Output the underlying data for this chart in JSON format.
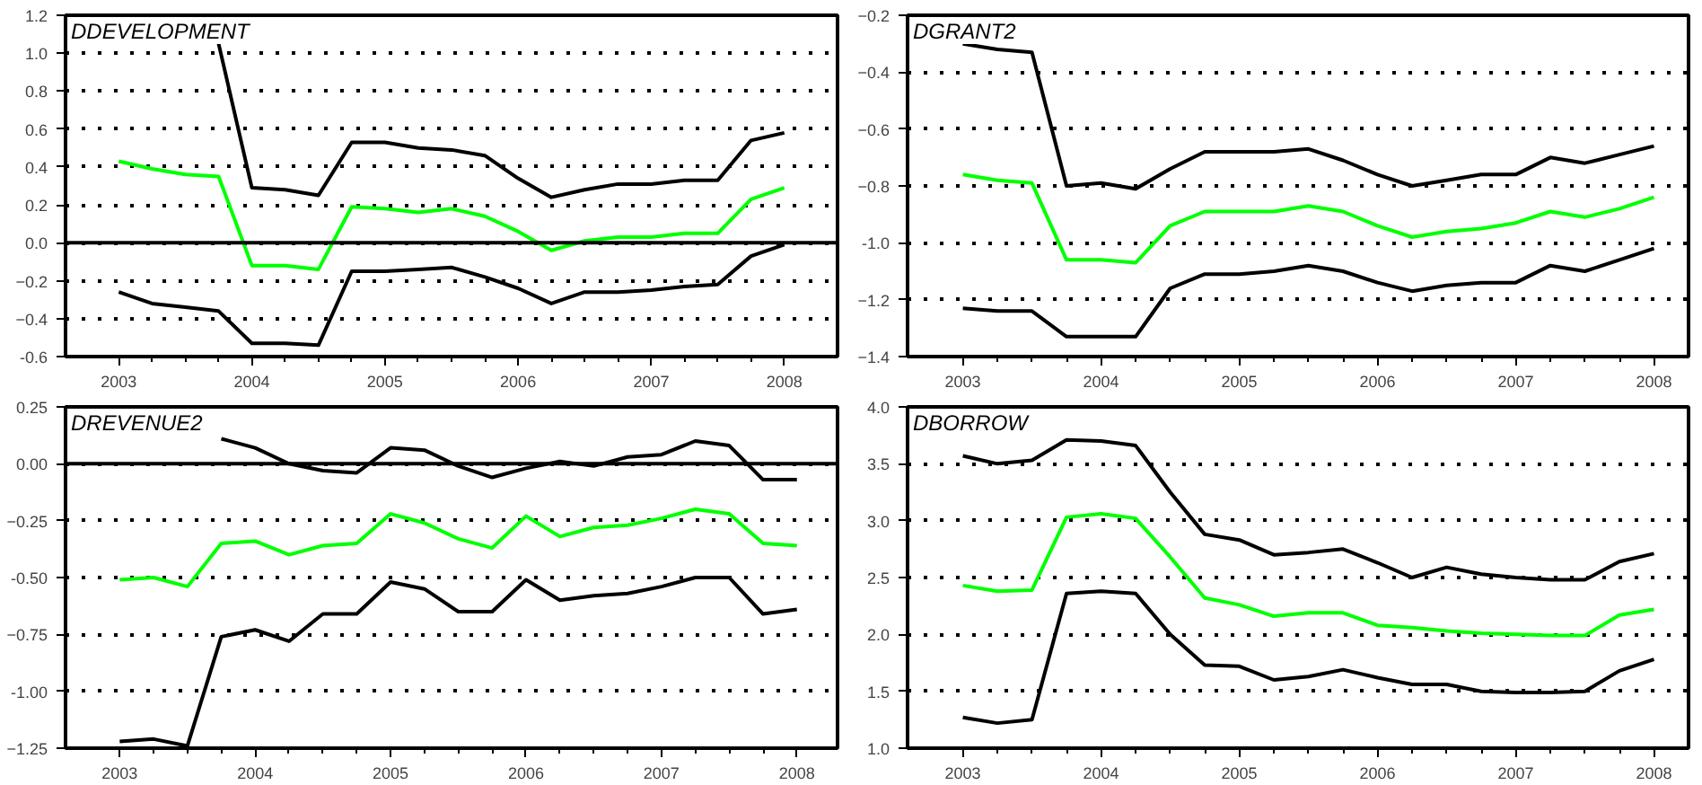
{
  "chart_data": [
    {
      "type": "line",
      "title": "DDEVELOPMENT",
      "grid": "y",
      "line_style": "solid",
      "x": [
        2003,
        2003.25,
        2003.5,
        2003.75,
        2004,
        2004.25,
        2004.5,
        2004.75,
        2005,
        2005.25,
        2005.5,
        2005.75,
        2006,
        2006.25,
        2006.5,
        2006.75,
        2007,
        2007.25,
        2007.5,
        2007.75,
        2008
      ],
      "xlim": [
        2002.6,
        2008.4
      ],
      "xticks": [
        2003,
        2004,
        2005,
        2006,
        2007,
        2008
      ],
      "ylim": [
        -0.6,
        1.2
      ],
      "yticks": [
        {
          "value": -0.6,
          "label": "-0.6"
        },
        -0.4,
        -0.2,
        {
          "value": 0,
          "label": "0.0"
        },
        0.2,
        0.4,
        0.6,
        0.8,
        {
          "value": 1.0,
          "label": "1.0"
        },
        1.2
      ],
      "ref_lines": [
        {
          "axis": "y",
          "value": 0,
          "color": "#000000"
        }
      ],
      "series": [
        {
          "color": "#000000",
          "values": [
            null,
            null,
            null,
            1.05,
            0.29,
            0.28,
            0.25,
            0.53,
            0.53,
            0.5,
            0.49,
            0.46,
            0.34,
            0.24,
            0.28,
            0.31,
            0.31,
            0.33,
            0.33,
            0.54,
            0.58
          ]
        },
        {
          "color": "#00ff00",
          "values": [
            0.43,
            0.39,
            0.36,
            0.35,
            -0.12,
            -0.12,
            -0.14,
            0.19,
            0.18,
            0.16,
            0.18,
            0.14,
            0.06,
            -0.04,
            0.01,
            0.03,
            0.03,
            0.05,
            0.05,
            0.23,
            0.29
          ]
        },
        {
          "color": "#000000",
          "values": [
            -0.26,
            -0.32,
            -0.34,
            -0.36,
            -0.53,
            -0.53,
            -0.54,
            -0.15,
            -0.15,
            -0.14,
            -0.13,
            -0.18,
            -0.24,
            -0.32,
            -0.26,
            -0.26,
            -0.25,
            -0.23,
            -0.22,
            -0.07,
            -0.01
          ]
        }
      ]
    },
    {
      "type": "line",
      "title": "DGRANT2",
      "grid": "y",
      "line_style": "solid",
      "x": [
        2003,
        2003.25,
        2003.5,
        2003.75,
        2004,
        2004.25,
        2004.5,
        2004.75,
        2005,
        2005.25,
        2005.5,
        2005.75,
        2006,
        2006.25,
        2006.5,
        2006.75,
        2007,
        2007.25,
        2007.5,
        2007.75,
        2008
      ],
      "xlim": [
        2002.6,
        2008.25
      ],
      "xticks": [
        2003,
        2004,
        2005,
        2006,
        2007,
        2008
      ],
      "ylim": [
        -1.4,
        -0.2
      ],
      "yticks": [
        -1.4,
        -1.2,
        {
          "value": -1.0,
          "label": "-1.0"
        },
        -0.8,
        -0.6,
        -0.4,
        -0.2
      ],
      "series": [
        {
          "color": "#000000",
          "values": [
            -0.3,
            -0.32,
            -0.33,
            -0.8,
            -0.79,
            -0.81,
            -0.74,
            -0.68,
            -0.68,
            -0.68,
            -0.67,
            -0.71,
            -0.76,
            -0.8,
            -0.78,
            -0.76,
            -0.76,
            -0.7,
            -0.72,
            -0.69,
            -0.66
          ]
        },
        {
          "color": "#00ff00",
          "values": [
            -0.76,
            -0.78,
            -0.79,
            -1.06,
            -1.06,
            -1.07,
            -0.94,
            -0.89,
            -0.89,
            -0.89,
            -0.87,
            -0.89,
            -0.94,
            -0.98,
            -0.96,
            -0.95,
            -0.93,
            -0.89,
            -0.91,
            -0.88,
            -0.84
          ]
        },
        {
          "color": "#000000",
          "values": [
            -1.23,
            -1.24,
            -1.24,
            -1.33,
            -1.33,
            -1.33,
            -1.16,
            -1.11,
            -1.11,
            -1.1,
            -1.08,
            -1.1,
            -1.14,
            -1.17,
            -1.15,
            -1.14,
            -1.14,
            -1.08,
            -1.1,
            -1.06,
            -1.02
          ]
        }
      ]
    },
    {
      "type": "line",
      "title": "DREVENUE2",
      "grid": "y",
      "line_style": "solid",
      "x": [
        2003,
        2003.25,
        2003.5,
        2003.75,
        2004,
        2004.25,
        2004.5,
        2004.75,
        2005,
        2005.25,
        2005.5,
        2005.75,
        2006,
        2006.25,
        2006.5,
        2006.75,
        2007,
        2007.25,
        2007.5,
        2007.75,
        2008
      ],
      "xlim": [
        2002.6,
        2008.3
      ],
      "xticks": [
        2003,
        2004,
        2005,
        2006,
        2007,
        2008
      ],
      "ylim": [
        -1.25,
        0.25
      ],
      "yticks": [
        -1.25,
        {
          "value": -1.0,
          "label": "-1.00"
        },
        -0.75,
        {
          "value": -0.5,
          "label": "-0.50"
        },
        -0.25,
        {
          "value": 0,
          "label": "0.00"
        },
        0.25
      ],
      "ref_lines": [
        {
          "axis": "y",
          "value": 0,
          "color": "#000000"
        }
      ],
      "series": [
        {
          "color": "#000000",
          "values": [
            null,
            null,
            null,
            0.11,
            0.07,
            0.0,
            -0.03,
            -0.04,
            0.07,
            0.06,
            -0.01,
            -0.06,
            -0.02,
            0.01,
            -0.01,
            0.03,
            0.04,
            0.1,
            0.08,
            -0.07,
            -0.07
          ]
        },
        {
          "color": "#00ff00",
          "values": [
            -0.51,
            -0.5,
            -0.54,
            -0.35,
            -0.34,
            -0.4,
            -0.36,
            -0.35,
            -0.22,
            -0.26,
            -0.33,
            -0.37,
            -0.23,
            -0.32,
            -0.28,
            -0.27,
            -0.24,
            -0.2,
            -0.22,
            -0.35,
            -0.36
          ]
        },
        {
          "color": "#000000",
          "values": [
            -1.22,
            -1.21,
            -1.24,
            -0.76,
            -0.73,
            -0.78,
            -0.66,
            -0.66,
            -0.52,
            -0.55,
            -0.65,
            -0.65,
            -0.51,
            -0.6,
            -0.58,
            -0.57,
            -0.54,
            -0.5,
            -0.5,
            -0.66,
            -0.64
          ]
        }
      ]
    },
    {
      "type": "line",
      "title": "DBORROW",
      "grid": "y",
      "line_style": "solid",
      "x": [
        2003,
        2003.25,
        2003.5,
        2003.75,
        2004,
        2004.25,
        2004.5,
        2004.75,
        2005,
        2005.25,
        2005.5,
        2005.75,
        2006,
        2006.25,
        2006.5,
        2006.75,
        2007,
        2007.25,
        2007.5,
        2007.75,
        2008
      ],
      "xlim": [
        2002.6,
        2008.25
      ],
      "xticks": [
        2003,
        2004,
        2005,
        2006,
        2007,
        2008
      ],
      "ylim": [
        1.0,
        4.0
      ],
      "yticks": [
        {
          "value": 1.0,
          "label": "1.0"
        },
        1.5,
        {
          "value": 2.0,
          "label": "2.0"
        },
        2.5,
        {
          "value": 3.0,
          "label": "3.0"
        },
        3.5,
        {
          "value": 4.0,
          "label": "4.0"
        }
      ],
      "series": [
        {
          "color": "#000000",
          "values": [
            3.57,
            3.5,
            3.53,
            3.71,
            3.7,
            3.66,
            3.25,
            2.88,
            2.83,
            2.7,
            2.72,
            2.75,
            2.63,
            2.5,
            2.59,
            2.53,
            2.5,
            2.48,
            2.48,
            2.64,
            2.71
          ]
        },
        {
          "color": "#00ff00",
          "values": [
            2.43,
            2.38,
            2.39,
            3.03,
            3.06,
            3.02,
            2.68,
            2.32,
            2.26,
            2.16,
            2.19,
            2.19,
            2.08,
            2.06,
            2.03,
            2.01,
            2.0,
            1.99,
            1.99,
            2.17,
            2.22
          ]
        },
        {
          "color": "#000000",
          "values": [
            1.27,
            1.22,
            1.25,
            2.36,
            2.38,
            2.36,
            2.0,
            1.73,
            1.72,
            1.6,
            1.63,
            1.69,
            1.62,
            1.56,
            1.56,
            1.5,
            1.49,
            1.49,
            1.5,
            1.68,
            1.78
          ]
        }
      ]
    }
  ]
}
